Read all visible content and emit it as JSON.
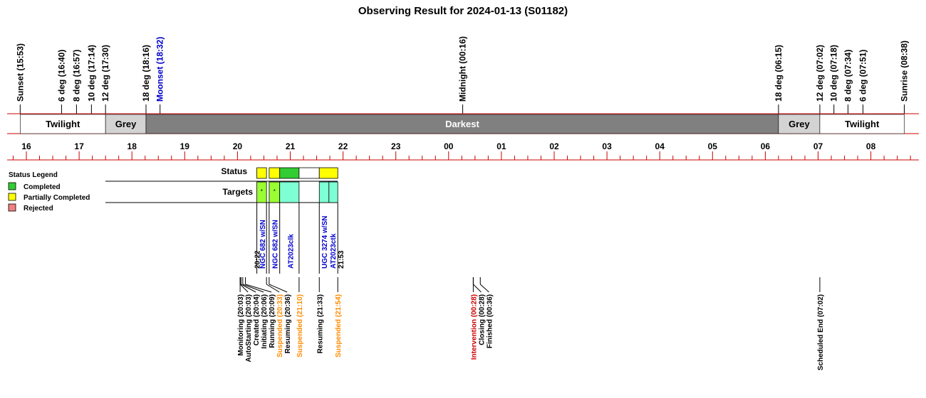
{
  "chart_data": {
    "type": "timeline",
    "title": "Observing Result for 2024-01-13 (S01182)",
    "x_range_hours": [
      15.6,
      32.9
    ],
    "hour_ticks": [
      {
        "t": 16,
        "label": "16"
      },
      {
        "t": 17,
        "label": "17"
      },
      {
        "t": 18,
        "label": "18"
      },
      {
        "t": 19,
        "label": "19"
      },
      {
        "t": 20,
        "label": "20"
      },
      {
        "t": 21,
        "label": "21"
      },
      {
        "t": 22,
        "label": "22"
      },
      {
        "t": 23,
        "label": "23"
      },
      {
        "t": 24,
        "label": "00"
      },
      {
        "t": 25,
        "label": "01"
      },
      {
        "t": 26,
        "label": "02"
      },
      {
        "t": 27,
        "label": "03"
      },
      {
        "t": 28,
        "label": "04"
      },
      {
        "t": 29,
        "label": "05"
      },
      {
        "t": 30,
        "label": "06"
      },
      {
        "t": 31,
        "label": "07"
      },
      {
        "t": 32,
        "label": "08"
      }
    ],
    "bands": [
      {
        "start": 15.883,
        "end": 17.5,
        "label": "Twilight",
        "fill": "#ffffff",
        "text_color": "#000000"
      },
      {
        "start": 17.5,
        "end": 18.267,
        "label": "Grey",
        "fill": "#d3d3d3",
        "text_color": "#000000"
      },
      {
        "start": 18.267,
        "end": 30.25,
        "label": "Darkest",
        "fill": "#808080",
        "text_color": "#ffffff"
      },
      {
        "start": 30.25,
        "end": 31.033,
        "label": "Grey",
        "fill": "#d3d3d3",
        "text_color": "#000000"
      },
      {
        "start": 31.033,
        "end": 32.633,
        "label": "Twilight",
        "fill": "#ffffff",
        "text_color": "#000000"
      }
    ],
    "sun_events": [
      {
        "t": 15.883,
        "label": "Sunset (15:53)",
        "color": "#000000"
      },
      {
        "t": 16.667,
        "label": "6 deg (16:40)",
        "color": "#000000"
      },
      {
        "t": 16.95,
        "label": "8 deg (16:57)",
        "color": "#000000"
      },
      {
        "t": 17.233,
        "label": "10 deg (17:14)",
        "color": "#000000"
      },
      {
        "t": 17.5,
        "label": "12 deg (17:30)",
        "color": "#000000"
      },
      {
        "t": 18.267,
        "label": "18 deg (18:16)",
        "color": "#000000"
      },
      {
        "t": 18.533,
        "label": "Moonset (18:32)",
        "color": "#0000cc"
      },
      {
        "t": 24.267,
        "label": "Midnight (00:16)",
        "color": "#000000"
      },
      {
        "t": 30.25,
        "label": "18 deg (06:15)",
        "color": "#000000"
      },
      {
        "t": 31.033,
        "label": "12 deg (07:02)",
        "color": "#000000"
      },
      {
        "t": 31.3,
        "label": "10 deg (07:18)",
        "color": "#000000"
      },
      {
        "t": 31.567,
        "label": "8 deg (07:34)",
        "color": "#000000"
      },
      {
        "t": 31.85,
        "label": "6 deg (07:51)",
        "color": "#000000"
      },
      {
        "t": 32.633,
        "label": "Sunrise (08:38)",
        "color": "#000000"
      }
    ],
    "legend": {
      "title": "Status Legend",
      "items": [
        {
          "label": "Completed",
          "color": "#33cc33"
        },
        {
          "label": "Partially Completed",
          "color": "#ffff00"
        },
        {
          "label": "Rejected",
          "color": "#f08080"
        }
      ]
    },
    "rows": {
      "status": "Status",
      "targets": "Targets"
    },
    "status_blocks": [
      {
        "start": 20.367,
        "end": 20.55,
        "status": "Partially Completed"
      },
      {
        "start": 20.6,
        "end": 20.8,
        "status": "Partially Completed"
      },
      {
        "start": 20.8,
        "end": 21.167,
        "status": "Completed"
      },
      {
        "start": 21.167,
        "end": 21.55,
        "status": "none"
      },
      {
        "start": 21.55,
        "end": 21.9,
        "status": "Partially Completed"
      }
    ],
    "target_blocks": [
      {
        "start": 20.367,
        "end": 20.55,
        "color": "#99ff33",
        "mark": "*"
      },
      {
        "start": 20.6,
        "end": 20.8,
        "color": "#99ff33",
        "mark": "*"
      },
      {
        "start": 20.8,
        "end": 21.167,
        "color": "#7fffd4",
        "mark": ""
      },
      {
        "start": 21.55,
        "end": 21.733,
        "color": "#7fffd4",
        "mark": ""
      },
      {
        "start": 21.733,
        "end": 21.9,
        "color": "#7fffd4",
        "mark": ""
      }
    ],
    "target_labels": [
      {
        "t": 20.367,
        "label": "20:22",
        "color": "#000000"
      },
      {
        "t": 20.47,
        "label": "NGC 682  w/SN",
        "color": "#0000cc"
      },
      {
        "t": 20.7,
        "label": "NGC 682  w/SN",
        "color": "#0000cc"
      },
      {
        "t": 21.0,
        "label": "AT2023clk",
        "color": "#0000cc"
      },
      {
        "t": 21.64,
        "label": "UGC 3274 w/SN",
        "color": "#0000cc"
      },
      {
        "t": 21.8,
        "label": "AT2023ctk",
        "color": "#0000cc"
      },
      {
        "t": 21.95,
        "label": "21:53",
        "color": "#000000"
      }
    ],
    "events": [
      {
        "t": 20.05,
        "label": "Monitoring (20:03)",
        "color": "#000000"
      },
      {
        "t": 20.05,
        "label": "AutoStarting (20:03)",
        "color": "#000000"
      },
      {
        "t": 20.067,
        "label": "Created (20:04)",
        "color": "#000000"
      },
      {
        "t": 20.1,
        "label": "Initiating (20:06)",
        "color": "#000000"
      },
      {
        "t": 20.15,
        "label": "Running (20:09)",
        "color": "#000000"
      },
      {
        "t": 20.55,
        "label": "Suspended (20:33)",
        "color": "#ff8c00"
      },
      {
        "t": 20.6,
        "label": "Resuming (20:36)",
        "color": "#000000"
      },
      {
        "t": 21.167,
        "label": "Suspended (21:10)",
        "color": "#ff8c00"
      },
      {
        "t": 21.55,
        "label": "Resuming (21:33)",
        "color": "#000000"
      },
      {
        "t": 21.9,
        "label": "Suspended (21:54)",
        "color": "#ff8c00"
      },
      {
        "t": 24.467,
        "label": "Intervention (00:28)",
        "color": "#cc0000"
      },
      {
        "t": 24.467,
        "label": "Closing (00:28)",
        "color": "#000000"
      },
      {
        "t": 24.6,
        "label": "Finished (00:36)",
        "color": "#000000"
      },
      {
        "t": 31.033,
        "label": "Scheduled End (07:02)",
        "color": "#000000"
      }
    ]
  }
}
